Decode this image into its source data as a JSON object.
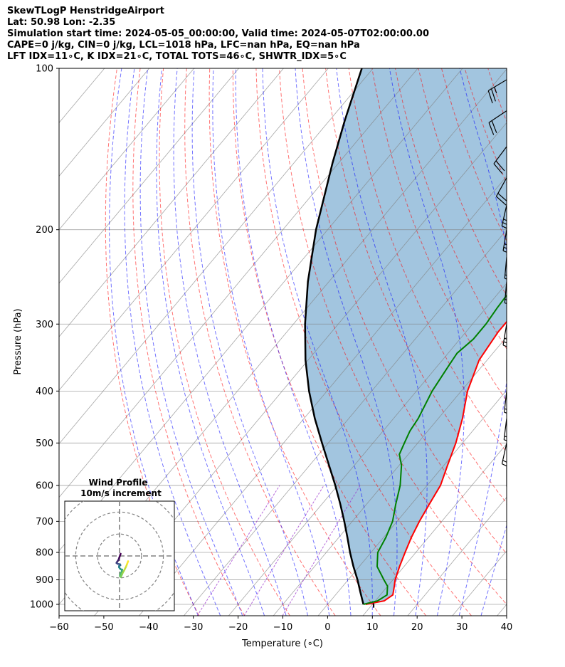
{
  "header": {
    "line1": "SkewTLogP HenstridgeAirport",
    "line2": "Lat: 50.98   Lon: -2.35",
    "line3": "Simulation start time: 2024-05-05_00:00:00, Valid time: 2024-05-07T02:00:00.00",
    "line4": "CAPE=0 j/kg, CIN=0 j/kg, LCL=1018 hPa, LFC=nan hPa, EQ=nan hPa",
    "line5": "LFT IDX=11∘C, K IDX=21∘C, TOTAL TOTS=46∘C, SHWTR_IDX=5∘C"
  },
  "chart_data": {
    "type": "line",
    "subtype": "skew-t log-p",
    "xlabel": "Temperature (∘C)",
    "ylabel": "Pressure (hPa)",
    "xlim": [
      -60,
      40
    ],
    "ylim": [
      1050,
      100
    ],
    "y_scale": "log",
    "grid": true,
    "x_ticks": [
      -60,
      -50,
      -40,
      -30,
      -20,
      -10,
      0,
      10,
      20,
      30,
      40
    ],
    "x_tick_labels": [
      "−60",
      "−50",
      "−40",
      "−30",
      "−20",
      "−10",
      "0",
      "10",
      "20",
      "30",
      "40"
    ],
    "y_ticks": [
      1000,
      900,
      800,
      700,
      600,
      500,
      400,
      300,
      200,
      100
    ],
    "y_tick_labels": [
      "1000",
      "900",
      "800",
      "700",
      "600",
      "500",
      "400",
      "300",
      "200",
      "100"
    ],
    "colors": {
      "temperature": "#ff0000",
      "dewpoint": "#008000",
      "parcel": "#000000",
      "cin_fill": "#7eaed2",
      "dry_adiabats": "#ff0000",
      "moist_adiabats": "#0000ff",
      "mixing_lines": "#9932cc",
      "isotherms": "#808080"
    },
    "series": [
      {
        "key": "temperature",
        "points": [
          [
            1000,
            8.5
          ],
          [
            985,
            12
          ],
          [
            960,
            12.8
          ],
          [
            925,
            11.5
          ],
          [
            900,
            10.5
          ],
          [
            850,
            9
          ],
          [
            800,
            7.6
          ],
          [
            750,
            6.2
          ],
          [
            700,
            5
          ],
          [
            650,
            4
          ],
          [
            600,
            3
          ],
          [
            550,
            0.8
          ],
          [
            500,
            -1.5
          ],
          [
            450,
            -4.6
          ],
          [
            400,
            -8.6
          ],
          [
            350,
            -11.8
          ],
          [
            310,
            -12.8
          ],
          [
            300,
            -12.8
          ],
          [
            270,
            -12.8
          ],
          [
            250,
            -12.6
          ],
          [
            240,
            -12
          ],
          [
            230,
            -10
          ],
          [
            200,
            -4.8
          ],
          [
            180,
            -2
          ],
          [
            150,
            4
          ],
          [
            130,
            10.5
          ],
          [
            120,
            14.5
          ],
          [
            110,
            16.5
          ],
          [
            100,
            18
          ]
        ]
      },
      {
        "key": "dewpoint",
        "points": [
          [
            1000,
            8
          ],
          [
            985,
            10.5
          ],
          [
            960,
            11.5
          ],
          [
            925,
            10
          ],
          [
            900,
            8
          ],
          [
            850,
            4
          ],
          [
            800,
            1.5
          ],
          [
            750,
            0.5
          ],
          [
            700,
            -1
          ],
          [
            650,
            -3.5
          ],
          [
            600,
            -6
          ],
          [
            550,
            -9.5
          ],
          [
            525,
            -12
          ],
          [
            500,
            -13
          ],
          [
            475,
            -14
          ],
          [
            450,
            -14.5
          ],
          [
            400,
            -16.5
          ],
          [
            360,
            -17.5
          ],
          [
            340,
            -18
          ],
          [
            320,
            -17
          ],
          [
            300,
            -17
          ],
          [
            280,
            -17.5
          ],
          [
            250,
            -18
          ],
          [
            220,
            -19
          ],
          [
            200,
            -20.5
          ],
          [
            190,
            -23
          ],
          [
            175,
            -26.5
          ],
          [
            150,
            -24
          ],
          [
            120,
            -20
          ],
          [
            100,
            -14
          ]
        ]
      },
      {
        "key": "parcel",
        "points": [
          [
            1000,
            8.0
          ],
          [
            950,
            5.1
          ],
          [
            900,
            2.1
          ],
          [
            850,
            -1.3
          ],
          [
            800,
            -4.7
          ],
          [
            750,
            -8.1
          ],
          [
            700,
            -11.8
          ],
          [
            650,
            -15.9
          ],
          [
            600,
            -20.5
          ],
          [
            550,
            -25.7
          ],
          [
            500,
            -31.4
          ],
          [
            450,
            -37.6
          ],
          [
            400,
            -44.0
          ],
          [
            350,
            -50.6
          ],
          [
            300,
            -57.4
          ],
          [
            250,
            -64.7
          ],
          [
            200,
            -72.6
          ],
          [
            150,
            -81.4
          ],
          [
            125,
            -86.6
          ],
          [
            100,
            -92.5
          ]
        ]
      }
    ],
    "hodograph": {
      "title": "Wind Profile",
      "subtitle": "10m/s increment",
      "ring_speeds": [
        10,
        20,
        30
      ],
      "axis_limit": 25,
      "points": [
        [
          0.5,
          1.0
        ],
        [
          -0.2,
          -1.0
        ],
        [
          -0.6,
          -2.0
        ],
        [
          -1.2,
          -2.8
        ],
        [
          -1.4,
          -3.2
        ],
        [
          -0.8,
          -3.6
        ],
        [
          0.2,
          -3.8
        ],
        [
          0.4,
          -4.2
        ],
        [
          -0.2,
          -4.6
        ],
        [
          -0.2,
          -5.2
        ],
        [
          0.2,
          -5.8
        ],
        [
          0.8,
          -6.2
        ],
        [
          1.2,
          -6.2
        ],
        [
          1.0,
          -7.2
        ],
        [
          0.4,
          -8.0
        ],
        [
          0.2,
          -9.2
        ],
        [
          0.6,
          -9.6
        ],
        [
          1.4,
          -7.8
        ],
        [
          2.2,
          -6.4
        ],
        [
          3.0,
          -4.8
        ],
        [
          3.5,
          -3.5
        ],
        [
          3.9,
          -2.4
        ]
      ]
    },
    "wind_barbs": [
      {
        "p": 1000,
        "u": -4,
        "v": 3
      },
      {
        "p": 950,
        "u": -6,
        "v": 5
      },
      {
        "p": 925,
        "u": -5,
        "v": 7
      },
      {
        "p": 900,
        "u": -3,
        "v": 8
      },
      {
        "p": 875,
        "u": -2,
        "v": 9
      },
      {
        "p": 850,
        "u": -1,
        "v": 8
      },
      {
        "p": 800,
        "u": -1,
        "v": 8
      },
      {
        "p": 750,
        "u": -1,
        "v": 9
      },
      {
        "p": 700,
        "u": -2,
        "v": 11
      },
      {
        "p": 650,
        "u": -2,
        "v": 11
      },
      {
        "p": 600,
        "u": -1,
        "v": 10
      },
      {
        "p": 550,
        "u": 0,
        "v": 8
      },
      {
        "p": 500,
        "u": 2,
        "v": 9
      },
      {
        "p": 450,
        "u": 1,
        "v": 8
      },
      {
        "p": 400,
        "u": 1,
        "v": 9
      },
      {
        "p": 350,
        "u": 0,
        "v": 9
      },
      {
        "p": 300,
        "u": 2,
        "v": 12
      },
      {
        "p": 250,
        "u": 1,
        "v": 11
      },
      {
        "p": 225,
        "u": 1,
        "v": 11
      },
      {
        "p": 200,
        "u": 2,
        "v": 12
      },
      {
        "p": 180,
        "u": 3,
        "v": 13
      },
      {
        "p": 160,
        "u": 5,
        "v": 9
      },
      {
        "p": 140,
        "u": 6,
        "v": 8
      },
      {
        "p": 120,
        "u": 9,
        "v": 6
      },
      {
        "p": 105,
        "u": 10,
        "v": 6
      }
    ]
  }
}
